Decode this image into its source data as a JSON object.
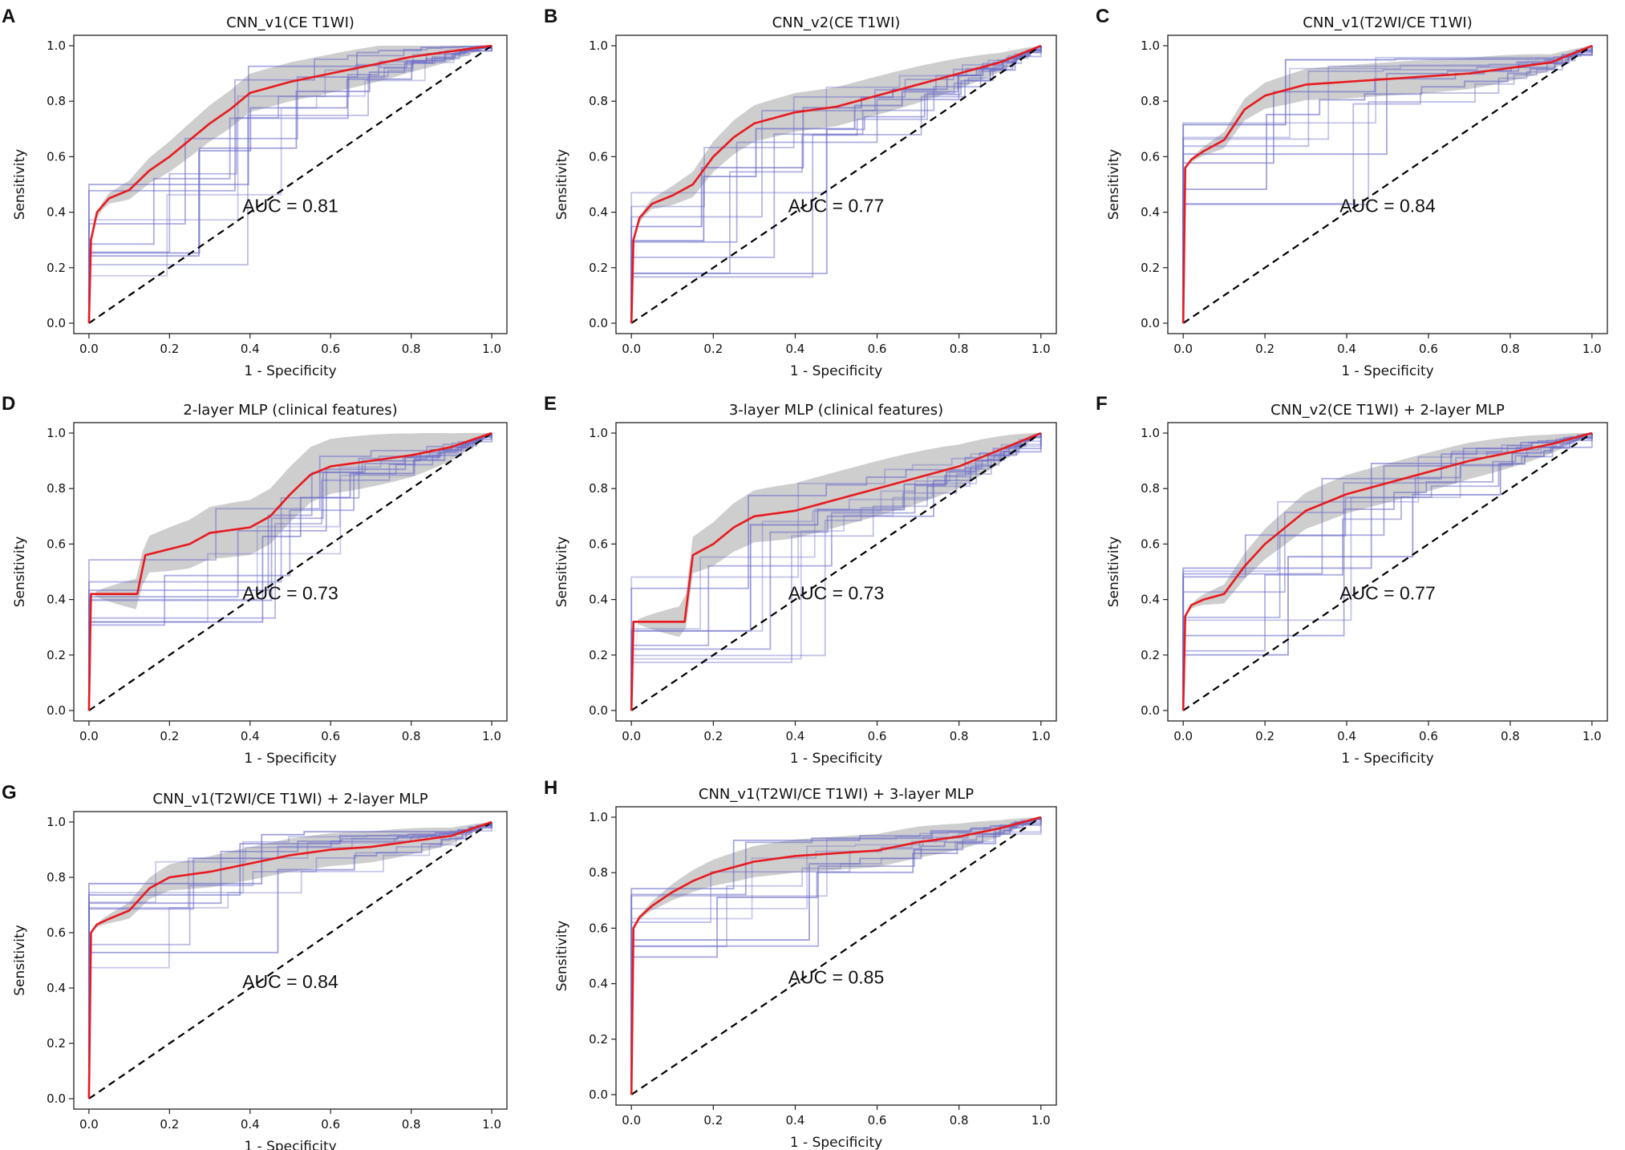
{
  "figure": {
    "xlabel": "1 - Specificity",
    "ylabel": "Sensitivity"
  },
  "colors": {
    "fold_line": "#6b6bc9",
    "mean_line": "#e8191e",
    "band": "#bdbdbd",
    "chance": "#000000"
  },
  "chart_data": [
    {
      "type": "line",
      "label": "A",
      "title": "CNN_v1(CE T1WI)",
      "auc": "AUC = 0.81",
      "xlim": [
        0,
        1
      ],
      "ylim": [
        0,
        1
      ],
      "xticks": [
        "0.0",
        "0.2",
        "0.4",
        "0.6",
        "0.8",
        "1.0"
      ],
      "yticks": [
        "0.0",
        "0.2",
        "0.4",
        "0.6",
        "0.8",
        "1.0"
      ],
      "mean_roc": {
        "x": [
          0,
          0.005,
          0.02,
          0.05,
          0.1,
          0.15,
          0.2,
          0.25,
          0.3,
          0.35,
          0.4,
          0.5,
          0.6,
          0.7,
          0.8,
          0.9,
          1.0
        ],
        "y": [
          0,
          0.3,
          0.4,
          0.45,
          0.48,
          0.55,
          0.6,
          0.66,
          0.72,
          0.77,
          0.83,
          0.87,
          0.9,
          0.93,
          0.96,
          0.98,
          1.0
        ]
      },
      "band_width": 0.07,
      "folds": 10,
      "seed": 11
    },
    {
      "type": "line",
      "label": "B",
      "title": "CNN_v2(CE T1WI)",
      "auc": "AUC = 0.77",
      "xlim": [
        0,
        1
      ],
      "ylim": [
        0,
        1
      ],
      "xticks": [
        "0.0",
        "0.2",
        "0.4",
        "0.6",
        "0.8",
        "1.0"
      ],
      "yticks": [
        "0.0",
        "0.2",
        "0.4",
        "0.6",
        "0.8",
        "1.0"
      ],
      "mean_roc": {
        "x": [
          0,
          0.005,
          0.02,
          0.05,
          0.1,
          0.15,
          0.2,
          0.25,
          0.3,
          0.4,
          0.5,
          0.6,
          0.7,
          0.8,
          0.9,
          1.0
        ],
        "y": [
          0,
          0.3,
          0.38,
          0.43,
          0.46,
          0.5,
          0.6,
          0.67,
          0.72,
          0.76,
          0.78,
          0.82,
          0.86,
          0.9,
          0.94,
          1.0
        ]
      },
      "band_width": 0.07,
      "folds": 10,
      "seed": 23
    },
    {
      "type": "line",
      "label": "C",
      "title": "CNN_v1(T2WI/CE T1WI)",
      "auc": "AUC = 0.84",
      "xlim": [
        0,
        1
      ],
      "ylim": [
        0,
        1
      ],
      "xticks": [
        "0.0",
        "0.2",
        "0.4",
        "0.6",
        "0.8",
        "1.0"
      ],
      "yticks": [
        "0.0",
        "0.2",
        "0.4",
        "0.6",
        "0.8",
        "1.0"
      ],
      "mean_roc": {
        "x": [
          0,
          0.005,
          0.02,
          0.05,
          0.1,
          0.15,
          0.2,
          0.3,
          0.4,
          0.5,
          0.6,
          0.7,
          0.8,
          0.9,
          1.0
        ],
        "y": [
          0,
          0.56,
          0.59,
          0.62,
          0.66,
          0.77,
          0.82,
          0.86,
          0.87,
          0.88,
          0.89,
          0.9,
          0.92,
          0.94,
          1.0
        ]
      },
      "band_width": 0.06,
      "folds": 10,
      "seed": 37
    },
    {
      "type": "line",
      "label": "D",
      "title": "2-layer MLP (clinical features)",
      "auc": "AUC = 0.73",
      "xlim": [
        0,
        1
      ],
      "ylim": [
        0,
        1
      ],
      "xticks": [
        "0.0",
        "0.2",
        "0.4",
        "0.6",
        "0.8",
        "1.0"
      ],
      "yticks": [
        "0.0",
        "0.2",
        "0.4",
        "0.6",
        "0.8",
        "1.0"
      ],
      "mean_roc": {
        "x": [
          0,
          0.005,
          0.12,
          0.14,
          0.25,
          0.3,
          0.4,
          0.45,
          0.5,
          0.55,
          0.6,
          0.7,
          0.8,
          0.9,
          1.0
        ],
        "y": [
          0,
          0.42,
          0.42,
          0.56,
          0.6,
          0.64,
          0.66,
          0.7,
          0.78,
          0.85,
          0.88,
          0.9,
          0.92,
          0.95,
          1.0
        ]
      },
      "band_width": 0.1,
      "folds": 10,
      "seed": 41
    },
    {
      "type": "line",
      "label": "E",
      "title": "3-layer MLP (clinical features)",
      "auc": "AUC = 0.73",
      "xlim": [
        0,
        1
      ],
      "ylim": [
        0,
        1
      ],
      "xticks": [
        "0.0",
        "0.2",
        "0.4",
        "0.6",
        "0.8",
        "1.0"
      ],
      "yticks": [
        "0.0",
        "0.2",
        "0.4",
        "0.6",
        "0.8",
        "1.0"
      ],
      "mean_roc": {
        "x": [
          0,
          0.005,
          0.13,
          0.15,
          0.2,
          0.25,
          0.3,
          0.4,
          0.5,
          0.6,
          0.7,
          0.8,
          0.9,
          1.0
        ],
        "y": [
          0,
          0.32,
          0.32,
          0.56,
          0.6,
          0.66,
          0.7,
          0.72,
          0.76,
          0.8,
          0.84,
          0.88,
          0.94,
          1.0
        ]
      },
      "band_width": 0.1,
      "folds": 10,
      "seed": 53
    },
    {
      "type": "line",
      "label": "F",
      "title": "CNN_v2(CE T1WI) + 2-layer MLP",
      "auc": "AUC = 0.77",
      "xlim": [
        0,
        1
      ],
      "ylim": [
        0,
        1
      ],
      "xticks": [
        "0.0",
        "0.2",
        "0.4",
        "0.6",
        "0.8",
        "1.0"
      ],
      "yticks": [
        "0.0",
        "0.2",
        "0.4",
        "0.6",
        "0.8",
        "1.0"
      ],
      "mean_roc": {
        "x": [
          0,
          0.005,
          0.02,
          0.05,
          0.1,
          0.15,
          0.2,
          0.25,
          0.3,
          0.4,
          0.5,
          0.6,
          0.7,
          0.8,
          0.9,
          1.0
        ],
        "y": [
          0,
          0.34,
          0.38,
          0.4,
          0.42,
          0.52,
          0.6,
          0.66,
          0.72,
          0.78,
          0.82,
          0.86,
          0.9,
          0.93,
          0.96,
          1.0
        ]
      },
      "band_width": 0.07,
      "folds": 10,
      "seed": 67
    },
    {
      "type": "line",
      "label": "G",
      "title": "CNN_v1(T2WI/CE T1WI) + 2-layer MLP",
      "auc": "AUC = 0.84",
      "xlim": [
        0,
        1
      ],
      "ylim": [
        0,
        1
      ],
      "xticks": [
        "0.0",
        "0.2",
        "0.4",
        "0.6",
        "0.8",
        "1.0"
      ],
      "yticks": [
        "0.0",
        "0.2",
        "0.4",
        "0.6",
        "0.8",
        "1.0"
      ],
      "mean_roc": {
        "x": [
          0,
          0.005,
          0.02,
          0.05,
          0.1,
          0.15,
          0.2,
          0.3,
          0.4,
          0.5,
          0.6,
          0.7,
          0.8,
          0.9,
          1.0
        ],
        "y": [
          0,
          0.6,
          0.63,
          0.65,
          0.68,
          0.76,
          0.8,
          0.82,
          0.85,
          0.88,
          0.9,
          0.91,
          0.93,
          0.95,
          1.0
        ]
      },
      "band_width": 0.06,
      "folds": 10,
      "seed": 79
    },
    {
      "type": "line",
      "label": "H",
      "title": "CNN_v1(T2WI/CE T1WI) + 3-layer MLP",
      "auc": "AUC = 0.85",
      "xlim": [
        0,
        1
      ],
      "ylim": [
        0,
        1
      ],
      "xticks": [
        "0.0",
        "0.2",
        "0.4",
        "0.6",
        "0.8",
        "1.0"
      ],
      "yticks": [
        "0.0",
        "0.2",
        "0.4",
        "0.6",
        "0.8",
        "1.0"
      ],
      "mean_roc": {
        "x": [
          0,
          0.005,
          0.02,
          0.05,
          0.1,
          0.15,
          0.2,
          0.3,
          0.4,
          0.5,
          0.6,
          0.7,
          0.8,
          0.9,
          1.0
        ],
        "y": [
          0,
          0.6,
          0.64,
          0.68,
          0.73,
          0.77,
          0.8,
          0.84,
          0.86,
          0.87,
          0.88,
          0.91,
          0.93,
          0.96,
          1.0
        ]
      },
      "band_width": 0.06,
      "folds": 10,
      "seed": 97
    }
  ]
}
